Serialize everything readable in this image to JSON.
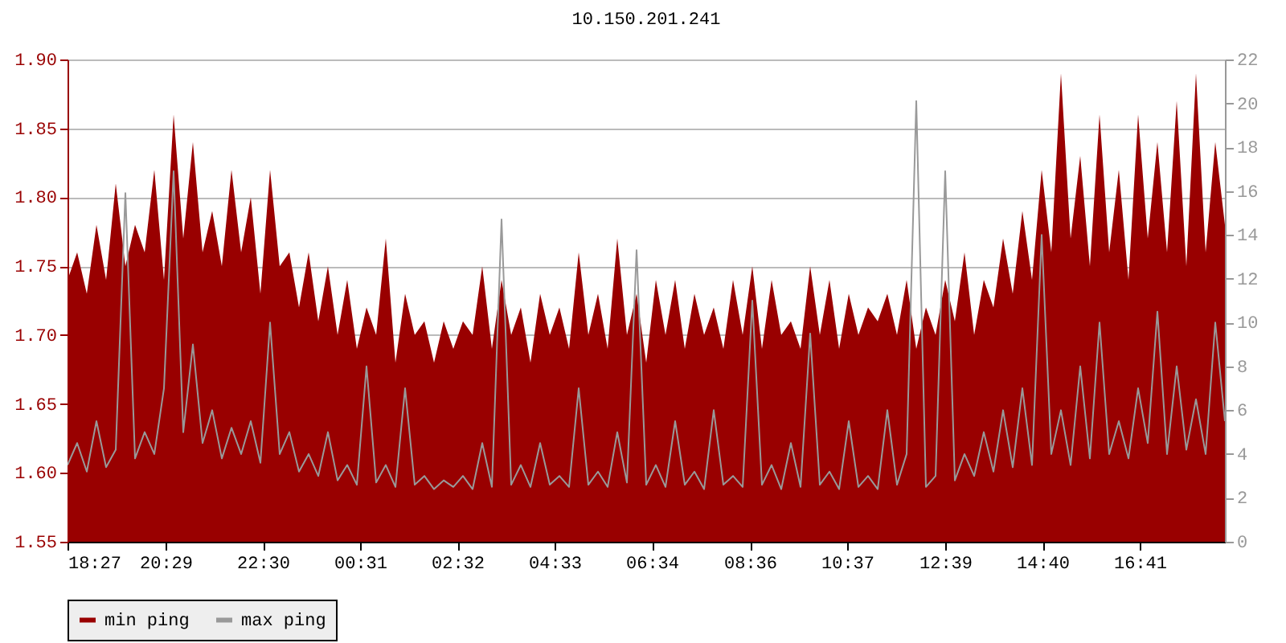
{
  "chart_data": {
    "type": "area",
    "title": "10.150.201.241",
    "x": [
      "--01-01T18:27",
      "--01-01T18:39",
      "--01-01T18:51",
      "--01-01T19:03",
      "--01-01T19:15",
      "--01-01T19:27",
      "--01-01T19:39",
      "--01-01T19:51",
      "--01-01T20:03",
      "--01-01T20:15",
      "--01-01T20:27",
      "--01-01T20:39",
      "--01-01T20:51",
      "--01-01T21:03",
      "--01-01T21:15",
      "--01-01T21:27",
      "--01-01T21:39",
      "--01-01T21:51",
      "--01-01T22:03",
      "--01-01T22:15",
      "--01-01T22:27",
      "--01-01T22:39",
      "--01-01T22:51",
      "--01-01T23:03",
      "--01-01T23:15",
      "--01-01T23:27",
      "--01-01T23:39",
      "--01-01T23:51",
      "--01-02T00:03",
      "--01-02T00:15",
      "--01-02T00:27",
      "--01-02T00:39",
      "--01-02T00:51",
      "--01-02T01:03",
      "--01-02T01:15",
      "--01-02T01:27",
      "--01-02T01:39",
      "--01-02T01:51",
      "--01-02T02:03",
      "--01-02T02:15",
      "--01-02T02:27",
      "--01-02T02:39",
      "--01-02T02:51",
      "--01-02T03:03",
      "--01-02T03:15",
      "--01-02T03:27",
      "--01-02T03:39",
      "--01-02T03:51",
      "--01-02T04:03",
      "--01-02T04:15",
      "--01-02T04:27",
      "--01-02T04:39",
      "--01-02T04:51",
      "--01-02T05:03",
      "--01-02T05:15",
      "--01-02T05:27",
      "--01-02T05:39",
      "--01-02T05:51",
      "--01-02T06:03",
      "--01-02T06:15",
      "--01-02T06:27",
      "--01-02T06:39",
      "--01-02T06:51",
      "--01-02T07:03",
      "--01-02T07:15",
      "--01-02T07:27",
      "--01-02T07:39",
      "--01-02T07:51",
      "--01-02T08:03",
      "--01-02T08:15",
      "--01-02T08:27",
      "--01-02T08:39",
      "--01-02T08:51",
      "--01-02T09:03",
      "--01-02T09:15",
      "--01-02T09:27",
      "--01-02T09:39",
      "--01-02T09:51",
      "--01-02T10:03",
      "--01-02T10:15",
      "--01-02T10:27",
      "--01-02T10:39",
      "--01-02T10:51",
      "--01-02T11:03",
      "--01-02T11:15",
      "--01-02T11:27",
      "--01-02T11:39",
      "--01-02T11:51",
      "--01-02T12:03",
      "--01-02T12:15",
      "--01-02T12:27",
      "--01-02T12:39",
      "--01-02T12:51",
      "--01-02T13:03",
      "--01-02T13:15",
      "--01-02T13:27",
      "--01-02T13:39",
      "--01-02T13:51",
      "--01-02T14:03",
      "--01-02T14:15",
      "--01-02T14:27",
      "--01-02T14:39",
      "--01-02T14:51",
      "--01-02T15:03",
      "--01-02T15:15",
      "--01-02T15:27",
      "--01-02T15:39",
      "--01-02T15:51",
      "--01-02T16:03",
      "--01-02T16:15",
      "--01-02T16:27",
      "--01-02T16:39",
      "--01-02T16:51",
      "--01-02T17:03",
      "--01-02T17:15",
      "--01-02T17:27",
      "--01-02T17:39",
      "--01-02T17:51",
      "--01-02T18:03",
      "--01-02T18:15",
      "--01-02T18:27"
    ],
    "series": [
      {
        "name": "min ping",
        "color": "#990000",
        "values": [
          1.74,
          1.76,
          1.73,
          1.78,
          1.74,
          1.81,
          1.75,
          1.78,
          1.76,
          1.82,
          1.74,
          1.86,
          1.77,
          1.84,
          1.76,
          1.79,
          1.75,
          1.82,
          1.76,
          1.8,
          1.73,
          1.82,
          1.75,
          1.76,
          1.72,
          1.76,
          1.71,
          1.75,
          1.7,
          1.74,
          1.69,
          1.72,
          1.7,
          1.77,
          1.68,
          1.73,
          1.7,
          1.71,
          1.68,
          1.71,
          1.69,
          1.71,
          1.7,
          1.75,
          1.69,
          1.74,
          1.7,
          1.72,
          1.68,
          1.73,
          1.7,
          1.72,
          1.69,
          1.76,
          1.7,
          1.73,
          1.69,
          1.77,
          1.7,
          1.73,
          1.68,
          1.74,
          1.7,
          1.74,
          1.69,
          1.73,
          1.7,
          1.72,
          1.69,
          1.74,
          1.7,
          1.75,
          1.69,
          1.74,
          1.7,
          1.71,
          1.69,
          1.75,
          1.7,
          1.74,
          1.69,
          1.73,
          1.7,
          1.72,
          1.71,
          1.73,
          1.7,
          1.74,
          1.69,
          1.72,
          1.7,
          1.74,
          1.71,
          1.76,
          1.7,
          1.74,
          1.72,
          1.77,
          1.73,
          1.79,
          1.74,
          1.82,
          1.76,
          1.89,
          1.77,
          1.83,
          1.75,
          1.86,
          1.76,
          1.82,
          1.74,
          1.86,
          1.77,
          1.84,
          1.76,
          1.87,
          1.75,
          1.89,
          1.76,
          1.84,
          1.78
        ]
      },
      {
        "name": "max ping",
        "type": "line",
        "axis": "y2",
        "color": "#999999",
        "values": [
          3.5,
          4.5,
          3.2,
          5.5,
          3.4,
          4.2,
          15.9,
          3.8,
          5,
          4,
          7,
          16.9,
          5,
          9,
          4.5,
          6,
          3.8,
          5.2,
          4,
          5.5,
          3.6,
          10,
          4,
          5,
          3.2,
          4,
          3,
          5,
          2.8,
          3.5,
          2.6,
          8,
          2.7,
          3.5,
          2.5,
          7,
          2.6,
          3,
          2.4,
          2.8,
          2.5,
          3,
          2.4,
          4.5,
          2.5,
          14.7,
          2.6,
          3.5,
          2.5,
          4.5,
          2.6,
          3,
          2.5,
          7,
          2.6,
          3.2,
          2.5,
          5,
          2.7,
          13.3,
          2.6,
          3.5,
          2.5,
          5.5,
          2.6,
          3.2,
          2.4,
          6,
          2.6,
          3,
          2.5,
          11,
          2.6,
          3.5,
          2.4,
          4.5,
          2.5,
          9.5,
          2.6,
          3.2,
          2.4,
          5.5,
          2.5,
          3,
          2.4,
          6,
          2.6,
          4,
          20.1,
          2.5,
          3,
          16.9,
          2.8,
          4,
          3,
          5,
          3.2,
          6,
          3.4,
          7,
          3.5,
          14,
          4,
          6,
          3.5,
          8,
          3.8,
          10,
          4,
          5.5,
          3.8,
          7,
          4.5,
          10.5,
          4,
          8,
          4.2,
          6.5,
          4,
          10,
          5.5
        ]
      }
    ],
    "xlim": [
      "--01-01T18:27",
      "--01-02T18:27"
    ],
    "xticks": [
      {
        "value": "--01-01T18:27",
        "label": "18:27"
      },
      {
        "value": "--01-01T20:29",
        "label": "20:29"
      },
      {
        "value": "--01-01T22:30",
        "label": "22:30"
      },
      {
        "value": "--01-02T00:31",
        "label": "00:31"
      },
      {
        "value": "--01-02T02:32",
        "label": "02:32"
      },
      {
        "value": "--01-02T04:33",
        "label": "04:33"
      },
      {
        "value": "--01-02T06:34",
        "label": "06:34"
      },
      {
        "value": "--01-02T08:36",
        "label": "08:36"
      },
      {
        "value": "--01-02T10:37",
        "label": "10:37"
      },
      {
        "value": "--01-02T12:39",
        "label": "12:39"
      },
      {
        "value": "--01-02T14:40",
        "label": "14:40"
      },
      {
        "value": "--01-02T16:41",
        "label": "16:41"
      }
    ],
    "ylim": [
      1.55,
      1.9
    ],
    "yticks": [
      {
        "value": 1.55,
        "label": "1.55"
      },
      {
        "value": 1.6,
        "label": "1.60"
      },
      {
        "value": 1.65,
        "label": "1.65"
      },
      {
        "value": 1.7,
        "label": "1.70"
      },
      {
        "value": 1.75,
        "label": "1.75"
      },
      {
        "value": 1.8,
        "label": "1.80"
      },
      {
        "value": 1.85,
        "label": "1.85"
      },
      {
        "value": 1.9,
        "label": "1.90"
      }
    ],
    "y2lim": [
      0,
      22
    ],
    "y2ticks": [
      0,
      2,
      4,
      6,
      8,
      10,
      12,
      14,
      16,
      18,
      20,
      22
    ],
    "grid": "y",
    "legend": "bottom"
  }
}
